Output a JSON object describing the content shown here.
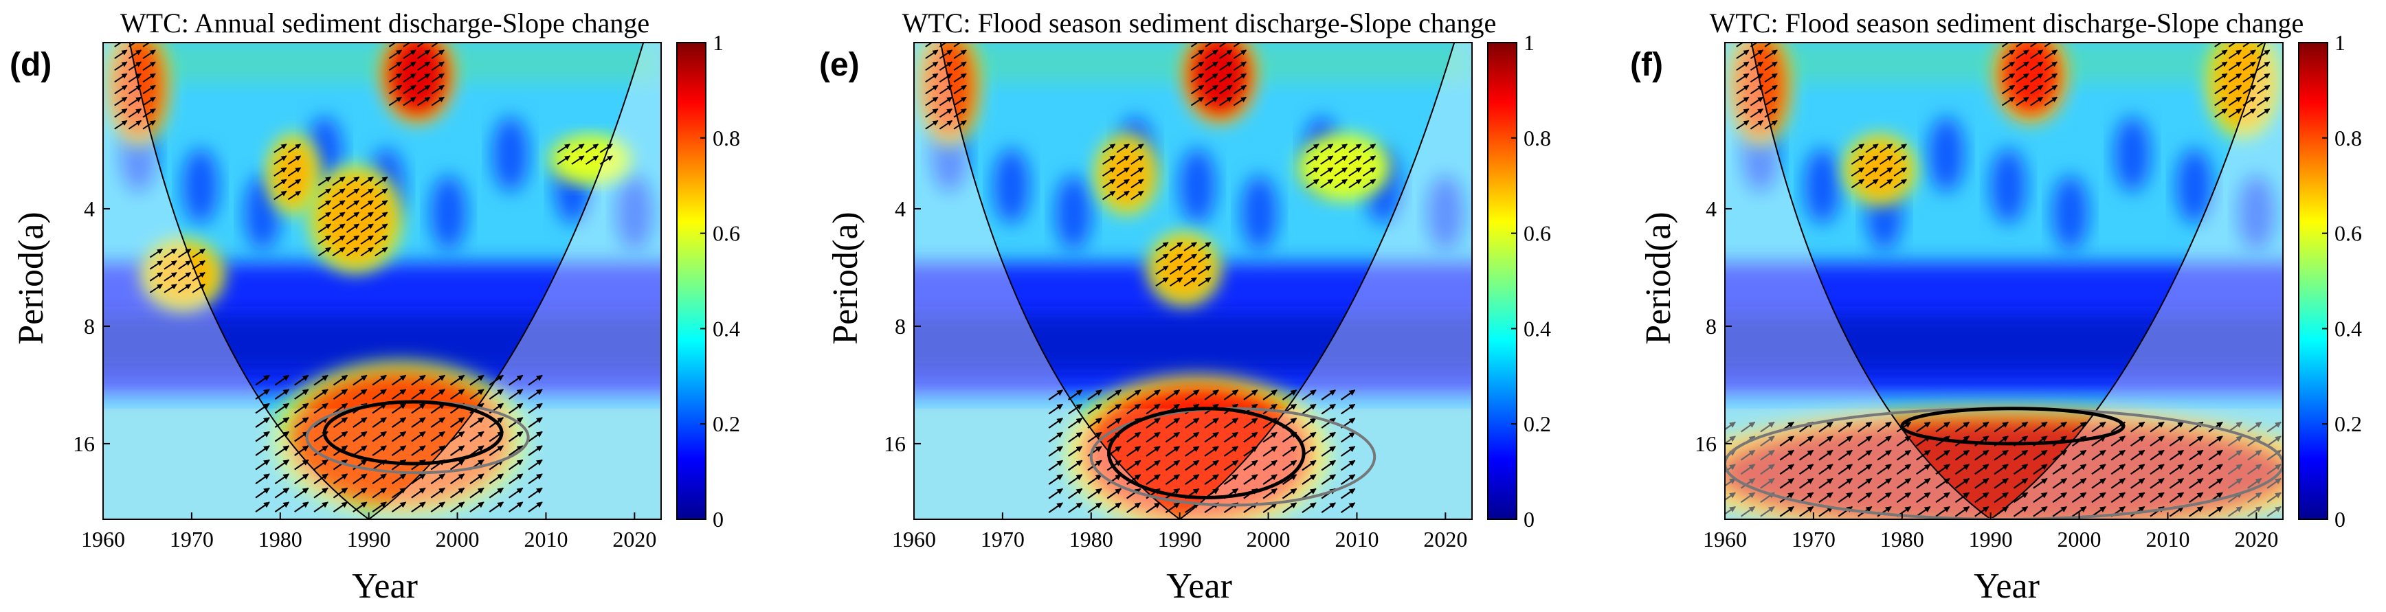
{
  "chart_data": [
    {
      "type": "heatmap",
      "panel_label": "(d)",
      "title": "WTC: Annual sediment discharge-Slope change",
      "xlabel": "Year",
      "ylabel": "Period(a)",
      "xlim": [
        1960,
        2023
      ],
      "ylim": [
        1.5,
        25
      ],
      "y_scale": "log2",
      "x_ticks": [
        1960,
        1970,
        1980,
        1990,
        2000,
        2010,
        2020
      ],
      "y_ticks": [
        4,
        8,
        16
      ],
      "colorbar": {
        "range": [
          0,
          1
        ],
        "ticks": [
          0,
          0.2,
          0.4,
          0.6,
          0.8,
          1
        ],
        "colormap": "jet"
      },
      "high_coherence_regions": [
        {
          "x": [
            1982,
            2005
          ],
          "period": [
            11,
            22
          ],
          "level": 0.8
        },
        {
          "x": [
            1993,
            1998
          ],
          "period": [
            1.5,
            2.2
          ],
          "level": 0.9
        },
        {
          "x": [
            1962,
            1966
          ],
          "period": [
            1.5,
            2.5
          ],
          "level": 0.8
        },
        {
          "x": [
            1980,
            1983
          ],
          "period": [
            2.8,
            3.8
          ],
          "level": 0.7
        },
        {
          "x": [
            1985,
            1992
          ],
          "period": [
            3.4,
            5.3
          ],
          "level": 0.7
        },
        {
          "x": [
            1966,
            1972
          ],
          "period": [
            5.2,
            6.7
          ],
          "level": 0.7
        },
        {
          "x": [
            2012,
            2018
          ],
          "period": [
            2.8,
            3.2
          ],
          "level": 0.6
        }
      ],
      "significance_contour": {
        "year_start": 1985,
        "year_end": 2005,
        "period_min": 12.5,
        "period_max": 18
      },
      "outer_contour": {
        "year_start": 1983,
        "year_end": 2008,
        "period_min": 12.5,
        "period_max": 19
      }
    },
    {
      "type": "heatmap",
      "panel_label": "(e)",
      "title": "WTC: Flood season sediment discharge-Slope change",
      "xlabel": "Year",
      "ylabel": "Period(a)",
      "xlim": [
        1960,
        2023
      ],
      "ylim": [
        1.5,
        25
      ],
      "y_scale": "log2",
      "x_ticks": [
        1960,
        1970,
        1980,
        1990,
        2000,
        2010,
        2020
      ],
      "y_ticks": [
        4,
        8,
        16
      ],
      "colorbar": {
        "range": [
          0,
          1
        ],
        "ticks": [
          0,
          0.2,
          0.4,
          0.6,
          0.8,
          1
        ],
        "colormap": "jet"
      },
      "high_coherence_regions": [
        {
          "x": [
            1980,
            2004
          ],
          "period": [
            12,
            24
          ],
          "level": 0.85
        },
        {
          "x": [
            1992,
            1997
          ],
          "period": [
            1.5,
            2.2
          ],
          "level": 0.9
        },
        {
          "x": [
            1962,
            1966
          ],
          "period": [
            1.5,
            2.5
          ],
          "level": 0.8
        },
        {
          "x": [
            1982,
            1986
          ],
          "period": [
            2.8,
            3.8
          ],
          "level": 0.7
        },
        {
          "x": [
            1988,
            1993
          ],
          "period": [
            5.0,
            6.5
          ],
          "level": 0.7
        },
        {
          "x": [
            2005,
            2012
          ],
          "period": [
            2.8,
            3.5
          ],
          "level": 0.6
        }
      ],
      "significance_contour": {
        "year_start": 1982,
        "year_end": 2004,
        "period_min": 13,
        "period_max": 22
      },
      "outer_contour": {
        "year_start": 1980,
        "year_end": 2012,
        "period_min": 13,
        "period_max": 23
      }
    },
    {
      "type": "heatmap",
      "panel_label": "(f)",
      "title": "WTC: Flood season sediment discharge-Slope change",
      "xlabel": "Year",
      "ylabel": "Period(a)",
      "xlim": [
        1960,
        2023
      ],
      "ylim": [
        1.5,
        25
      ],
      "y_scale": "log2",
      "x_ticks": [
        1960,
        1970,
        1980,
        1990,
        2000,
        2010,
        2020
      ],
      "y_ticks": [
        4,
        8,
        16
      ],
      "colorbar": {
        "range": [
          0,
          1
        ],
        "ticks": [
          0,
          0.2,
          0.4,
          0.6,
          0.8,
          1
        ],
        "colormap": "jet"
      },
      "high_coherence_regions": [
        {
          "x": [
            1960,
            2023
          ],
          "period": [
            14.5,
            25
          ],
          "level": 0.92
        },
        {
          "x": [
            1992,
            1997
          ],
          "period": [
            1.5,
            2.2
          ],
          "level": 0.85
        },
        {
          "x": [
            1962,
            1966
          ],
          "period": [
            1.5,
            2.5
          ],
          "level": 0.8
        },
        {
          "x": [
            1975,
            1980
          ],
          "period": [
            2.8,
            3.6
          ],
          "level": 0.7
        },
        {
          "x": [
            2016,
            2021
          ],
          "period": [
            1.5,
            2.4
          ],
          "level": 0.7
        }
      ],
      "significance_contour": {
        "year_start": 1980,
        "year_end": 2005,
        "period_min": 13,
        "period_max": 16
      },
      "outer_contour": {
        "year_start": 1960,
        "year_end": 2023,
        "period_min": 13,
        "period_max": 25
      }
    }
  ]
}
